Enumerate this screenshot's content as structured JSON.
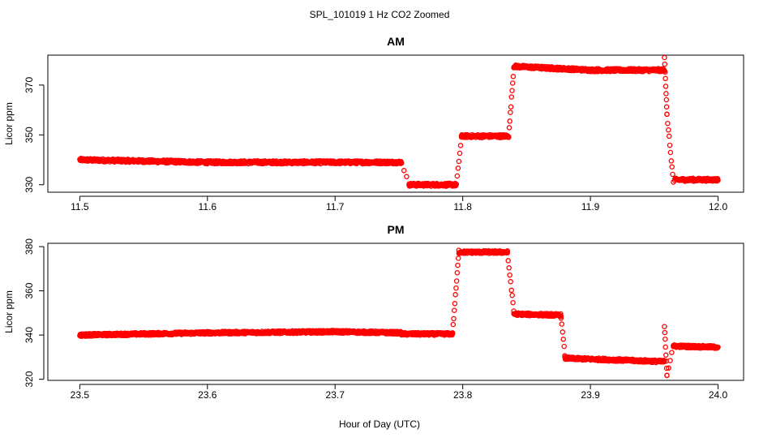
{
  "figure": {
    "title": "SPL_101019  1 Hz CO2 Zoomed",
    "xlabel": "Hour of Day (UTC)",
    "marker_color": "#ff0000"
  },
  "chart_data": [
    {
      "type": "scatter",
      "title": "AM",
      "xlabel": "",
      "ylabel": "Licor ppm",
      "xlim": [
        11.475,
        12.02
      ],
      "ylim": [
        327,
        382
      ],
      "xticks": [
        "11.5",
        "11.6",
        "11.7",
        "11.8",
        "11.9",
        "12.0"
      ],
      "yticks": [
        "330",
        "350",
        "370"
      ],
      "grid": false,
      "segments": [
        {
          "x": [
            11.5,
            11.6,
            11.7,
            11.752
          ],
          "y": [
            340,
            339,
            339,
            339
          ],
          "noise": 0.6
        },
        {
          "x": [
            11.752,
            11.758
          ],
          "y": [
            339,
            330
          ],
          "noise": 0.4
        },
        {
          "x": [
            11.758,
            11.795
          ],
          "y": [
            330,
            330
          ],
          "noise": 0.6
        },
        {
          "x": [
            11.795,
            11.799
          ],
          "y": [
            330,
            349
          ],
          "noise": 0.4
        },
        {
          "x": [
            11.799,
            11.836
          ],
          "y": [
            349.5,
            349.5
          ],
          "noise": 0.6
        },
        {
          "x": [
            11.836,
            11.84
          ],
          "y": [
            349.5,
            377
          ],
          "noise": 0.5
        },
        {
          "x": [
            11.84,
            11.9,
            11.958
          ],
          "y": [
            377.5,
            376,
            376
          ],
          "noise": 0.6
        },
        {
          "x": [
            11.958,
            11.96,
            11.965
          ],
          "y": [
            381.5,
            358,
            331
          ],
          "noise": 0.5
        },
        {
          "x": [
            11.966,
            12.0
          ],
          "y": [
            332,
            332
          ],
          "noise": 0.6
        }
      ]
    },
    {
      "type": "scatter",
      "title": "PM",
      "xlabel": "",
      "ylabel": "Licor ppm",
      "xlim": [
        23.475,
        24.02
      ],
      "ylim": [
        319.5,
        381.5
      ],
      "xticks": [
        "23.5",
        "23.6",
        "23.7",
        "23.8",
        "23.9",
        "24.0"
      ],
      "yticks": [
        "320",
        "340",
        "360",
        "380"
      ],
      "grid": false,
      "segments": [
        {
          "x": [
            23.5,
            23.6,
            23.7,
            23.752
          ],
          "y": [
            340,
            341,
            341.5,
            341
          ],
          "noise": 0.6
        },
        {
          "x": [
            23.752,
            23.792
          ],
          "y": [
            340.5,
            340.5
          ],
          "noise": 0.6
        },
        {
          "x": [
            23.792,
            23.797
          ],
          "y": [
            341,
            378
          ],
          "noise": 0.5
        },
        {
          "x": [
            23.797,
            23.835
          ],
          "y": [
            377.5,
            377.5
          ],
          "noise": 0.6
        },
        {
          "x": [
            23.835,
            23.84
          ],
          "y": [
            377,
            351
          ],
          "noise": 0.5
        },
        {
          "x": [
            23.84,
            23.877
          ],
          "y": [
            349.5,
            349
          ],
          "noise": 0.6
        },
        {
          "x": [
            23.877,
            23.88
          ],
          "y": [
            348,
            331
          ],
          "noise": 0.5
        },
        {
          "x": [
            23.88,
            23.958
          ],
          "y": [
            329.5,
            328
          ],
          "noise": 0.6
        },
        {
          "x": [
            23.958,
            23.96,
            23.965
          ],
          "y": [
            344,
            322,
            335.5
          ],
          "noise": 0.5
        },
        {
          "x": [
            23.965,
            24.0
          ],
          "y": [
            335,
            334.5
          ],
          "noise": 0.6
        }
      ]
    }
  ]
}
